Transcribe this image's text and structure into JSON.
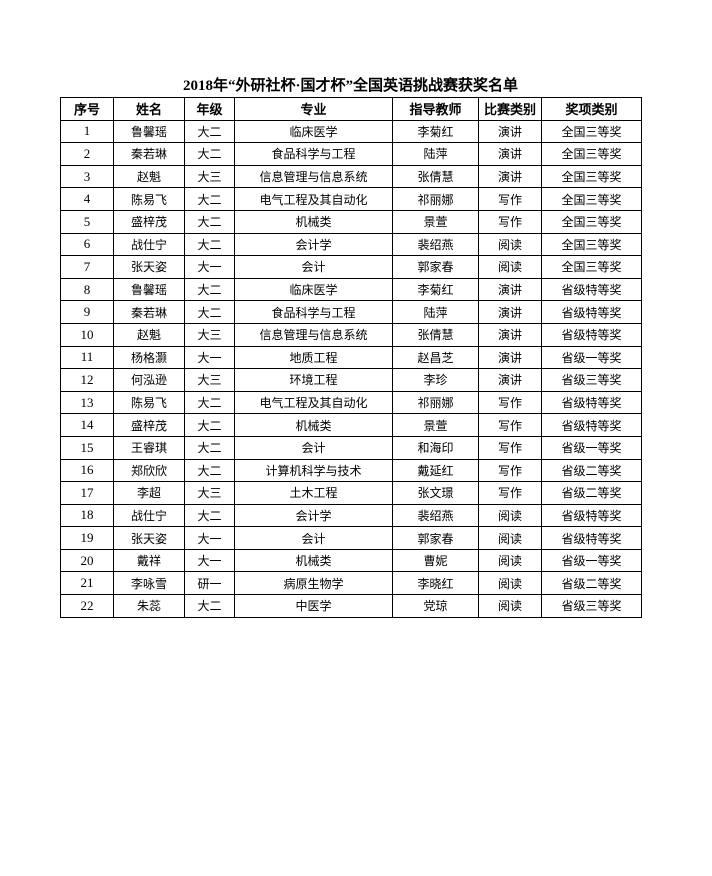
{
  "title": "2018年“外研社杯·国才杯”全国英语挑战赛获奖名单",
  "headers": [
    "序号",
    "姓名",
    "年级",
    "专业",
    "指导教师",
    "比赛类别",
    "奖项类别"
  ],
  "rows": [
    [
      "1",
      "鲁馨瑶",
      "大二",
      "临床医学",
      "李菊红",
      "演讲",
      "全国三等奖"
    ],
    [
      "2",
      "秦若琳",
      "大二",
      "食品科学与工程",
      "陆萍",
      "演讲",
      "全国三等奖"
    ],
    [
      "3",
      "赵魁",
      "大三",
      "信息管理与信息系统",
      "张倩慧",
      "演讲",
      "全国三等奖"
    ],
    [
      "4",
      "陈易飞",
      "大二",
      "电气工程及其自动化",
      "祁丽娜",
      "写作",
      "全国三等奖"
    ],
    [
      "5",
      "盛梓茂",
      "大二",
      "机械类",
      "景萱",
      "写作",
      "全国三等奖"
    ],
    [
      "6",
      "战仕宁",
      "大二",
      "会计学",
      "裴绍燕",
      "阅读",
      "全国三等奖"
    ],
    [
      "7",
      "张天姿",
      "大一",
      "会计",
      "郭家春",
      "阅读",
      "全国三等奖"
    ],
    [
      "8",
      "鲁馨瑶",
      "大二",
      "临床医学",
      "李菊红",
      "演讲",
      "省级特等奖"
    ],
    [
      "9",
      "秦若琳",
      "大二",
      "食品科学与工程",
      "陆萍",
      "演讲",
      "省级特等奖"
    ],
    [
      "10",
      "赵魁",
      "大三",
      "信息管理与信息系统",
      "张倩慧",
      "演讲",
      "省级特等奖"
    ],
    [
      "11",
      "杨格灏",
      "大一",
      "地质工程",
      "赵昌芝",
      "演讲",
      "省级一等奖"
    ],
    [
      "12",
      "何泓逊",
      "大三",
      "环境工程",
      "李珍",
      "演讲",
      "省级三等奖"
    ],
    [
      "13",
      "陈易飞",
      "大二",
      "电气工程及其自动化",
      "祁丽娜",
      "写作",
      "省级特等奖"
    ],
    [
      "14",
      "盛梓茂",
      "大二",
      "机械类",
      "景萱",
      "写作",
      "省级特等奖"
    ],
    [
      "15",
      "王睿琪",
      "大二",
      "会计",
      "和海印",
      "写作",
      "省级一等奖"
    ],
    [
      "16",
      "郑欣欣",
      "大二",
      "计算机科学与技术",
      "戴延红",
      "写作",
      "省级二等奖"
    ],
    [
      "17",
      "李超",
      "大三",
      "土木工程",
      "张文璟",
      "写作",
      "省级二等奖"
    ],
    [
      "18",
      "战仕宁",
      "大二",
      "会计学",
      "裴绍燕",
      "阅读",
      "省级特等奖"
    ],
    [
      "19",
      "张天姿",
      "大一",
      "会计",
      "郭家春",
      "阅读",
      "省级特等奖"
    ],
    [
      "20",
      "戴祥",
      "大一",
      "机械类",
      "曹妮",
      "阅读",
      "省级一等奖"
    ],
    [
      "21",
      "李咏雪",
      "研一",
      "病原生物学",
      "李晓红",
      "阅读",
      "省级二等奖"
    ],
    [
      "22",
      "朱蕊",
      "大二",
      "中医学",
      "党琼",
      "阅读",
      "省级三等奖"
    ]
  ]
}
